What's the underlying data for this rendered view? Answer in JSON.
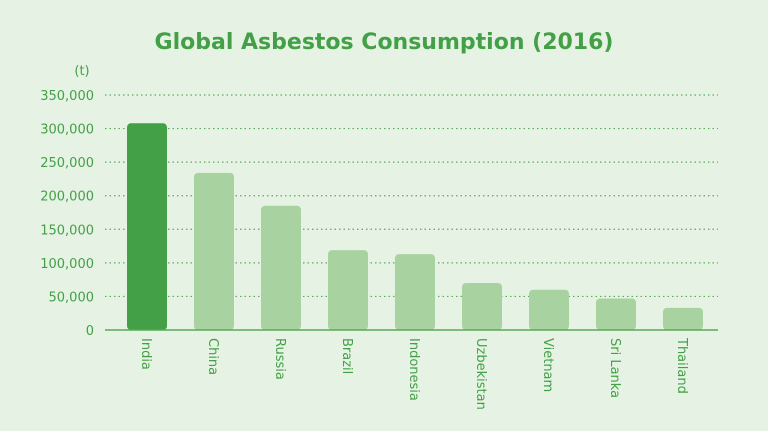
{
  "chart_data": {
    "type": "bar",
    "title": "Global Asbestos Consumption (2016)",
    "unit_label": "(t)",
    "categories": [
      "India",
      "China",
      "Russia",
      "Brazil",
      "Indonesia",
      "Uzbekistan",
      "Vietnam",
      "Sri Lanka",
      "Thailand"
    ],
    "values": [
      308000,
      234000,
      185000,
      119000,
      113000,
      70000,
      60000,
      47000,
      33000
    ],
    "ylim": [
      0,
      350000
    ],
    "yticks": [
      0,
      50000,
      100000,
      150000,
      200000,
      250000,
      300000,
      350000
    ],
    "ytick_labels": [
      "0",
      "50,000",
      "100,000",
      "150,000",
      "200,000",
      "250,000",
      "300,000",
      "350,000"
    ],
    "grid": true,
    "colors": {
      "highlight": "#43a047",
      "bar": "#a8d3a0",
      "text": "#43a047",
      "grid": "#5aa85a",
      "background": "#e6f3e4"
    }
  }
}
